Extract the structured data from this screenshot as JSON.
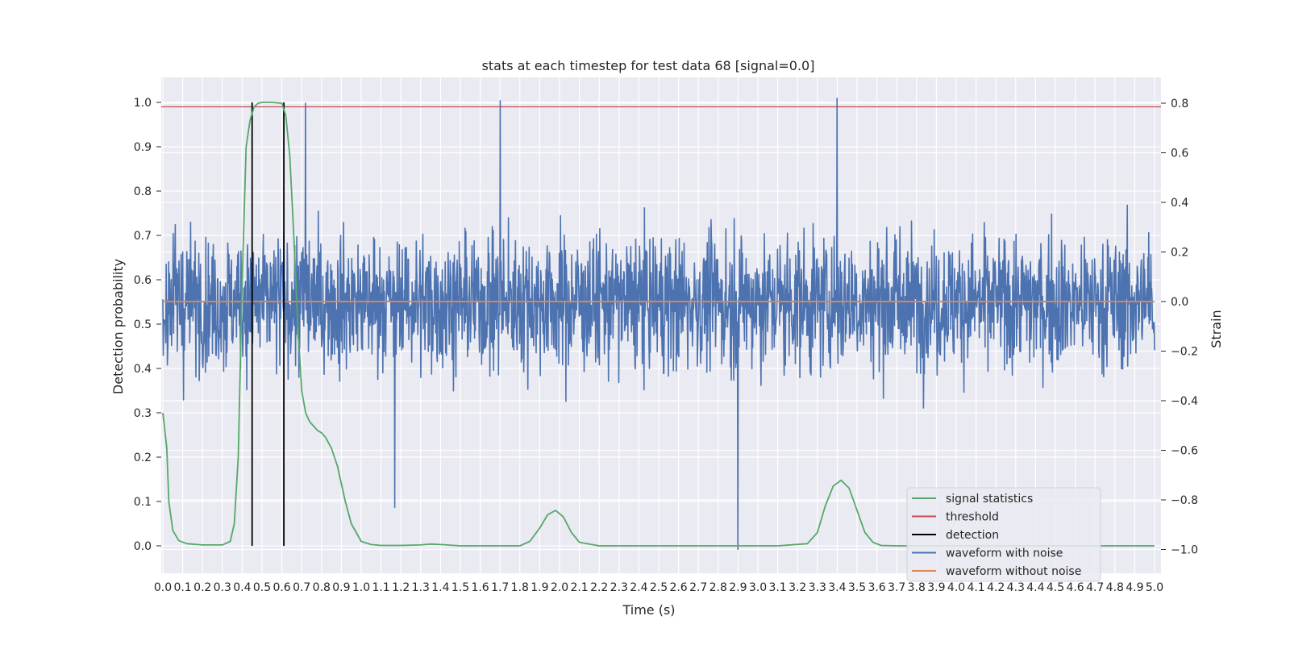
{
  "chart_data": {
    "type": "line",
    "title": "stats at each timestep for test data 68 [signal=0.0]",
    "xlabel": "Time (s)",
    "ylabel": "Detection probability",
    "y2label": "Strain",
    "xlim": [
      0,
      5.05
    ],
    "ylim": [
      -0.05,
      1.05
    ],
    "y2lim": [
      -1.09,
      0.89
    ],
    "grid": true,
    "x_ticks": [
      "0.0",
      "0.1",
      "0.2",
      "0.3",
      "0.4",
      "0.5",
      "0.6",
      "0.7",
      "0.8",
      "0.9",
      "1.0",
      "1.1",
      "1.2",
      "1.3",
      "1.4",
      "1.5",
      "1.6",
      "1.7",
      "1.8",
      "1.9",
      "2.0",
      "2.1",
      "2.2",
      "2.3",
      "2.4",
      "2.5",
      "2.6",
      "2.7",
      "2.8",
      "2.9",
      "3.0",
      "3.1",
      "3.2",
      "3.3",
      "3.4",
      "3.5",
      "3.6",
      "3.7",
      "3.8",
      "3.9",
      "4.0",
      "4.1",
      "4.2",
      "4.3",
      "4.4",
      "4.5",
      "4.6",
      "4.7",
      "4.8",
      "4.9",
      "5.0"
    ],
    "y_ticks": [
      "0.0",
      "0.1",
      "0.2",
      "0.3",
      "0.4",
      "0.5",
      "0.6",
      "0.7",
      "0.8",
      "0.9",
      "1.0"
    ],
    "y2_ticks": [
      "−1.0",
      "−0.8",
      "−0.6",
      "−0.4",
      "−0.2",
      "0.0",
      "0.2",
      "0.4",
      "0.6",
      "0.8"
    ],
    "y2_tick_values": [
      -1.0,
      -0.8,
      -0.6,
      -0.4,
      -0.2,
      0.0,
      0.2,
      0.4,
      0.6,
      0.8
    ],
    "threshold": 0.99,
    "detections": [
      0.45,
      0.61
    ],
    "signal_statistics": {
      "x": [
        0.0,
        0.02,
        0.03,
        0.05,
        0.08,
        0.12,
        0.2,
        0.3,
        0.34,
        0.36,
        0.38,
        0.4,
        0.42,
        0.44,
        0.46,
        0.48,
        0.5,
        0.55,
        0.6,
        0.62,
        0.64,
        0.66,
        0.68,
        0.7,
        0.72,
        0.74,
        0.76,
        0.78,
        0.8,
        0.82,
        0.85,
        0.88,
        0.92,
        0.95,
        1.0,
        1.05,
        1.1,
        1.2,
        1.3,
        1.35,
        1.4,
        1.5,
        1.8,
        1.85,
        1.9,
        1.94,
        1.98,
        2.02,
        2.06,
        2.1,
        2.2,
        2.5,
        2.8,
        3.1,
        3.25,
        3.3,
        3.34,
        3.38,
        3.42,
        3.46,
        3.5,
        3.54,
        3.58,
        3.62,
        3.7,
        4.0,
        4.5,
        5.0
      ],
      "y": [
        0.3,
        0.22,
        0.1,
        0.035,
        0.012,
        0.005,
        0.002,
        0.002,
        0.01,
        0.05,
        0.2,
        0.6,
        0.9,
        0.96,
        0.99,
        0.998,
        1.0,
        1.0,
        0.998,
        0.97,
        0.88,
        0.7,
        0.5,
        0.35,
        0.3,
        0.28,
        0.27,
        0.26,
        0.255,
        0.245,
        0.22,
        0.18,
        0.1,
        0.05,
        0.01,
        0.003,
        0.001,
        0.001,
        0.002,
        0.004,
        0.003,
        0.0,
        0.0,
        0.01,
        0.04,
        0.07,
        0.08,
        0.065,
        0.03,
        0.008,
        0.0,
        0.0,
        0.0,
        0.0,
        0.005,
        0.03,
        0.09,
        0.135,
        0.148,
        0.13,
        0.08,
        0.03,
        0.008,
        0.001,
        0.0,
        0.0,
        0.0,
        0.0
      ]
    },
    "waveform_with_noise": {
      "description_points": 2400,
      "range": [
        -1.0,
        0.82
      ],
      "notable_spikes": [
        {
          "t": 0.72,
          "strain": 0.8
        },
        {
          "t": 1.7,
          "strain": 0.81
        },
        {
          "t": 3.4,
          "strain": 0.82
        },
        {
          "t": 2.9,
          "strain": -1.0
        },
        {
          "t": 1.17,
          "strain": -0.83
        }
      ]
    },
    "waveform_without_noise": 0.0,
    "legend": {
      "position": "lower-right",
      "entries": [
        {
          "label": "signal statistics",
          "color": "#55a868"
        },
        {
          "label": "threshold",
          "color": "#c44e52"
        },
        {
          "label": "detection",
          "color": "#000000"
        },
        {
          "label": "waveform with noise",
          "color": "#4c72b0"
        },
        {
          "label": "waveform without noise",
          "color": "#dd8452"
        }
      ]
    },
    "colors": {
      "background": "#eaeaf2",
      "grid": "#ffffff",
      "signal": "#55a868",
      "threshold": "#c44e52",
      "detection": "#000000",
      "noise": "#4c72b0",
      "clean": "#dd8452"
    }
  }
}
